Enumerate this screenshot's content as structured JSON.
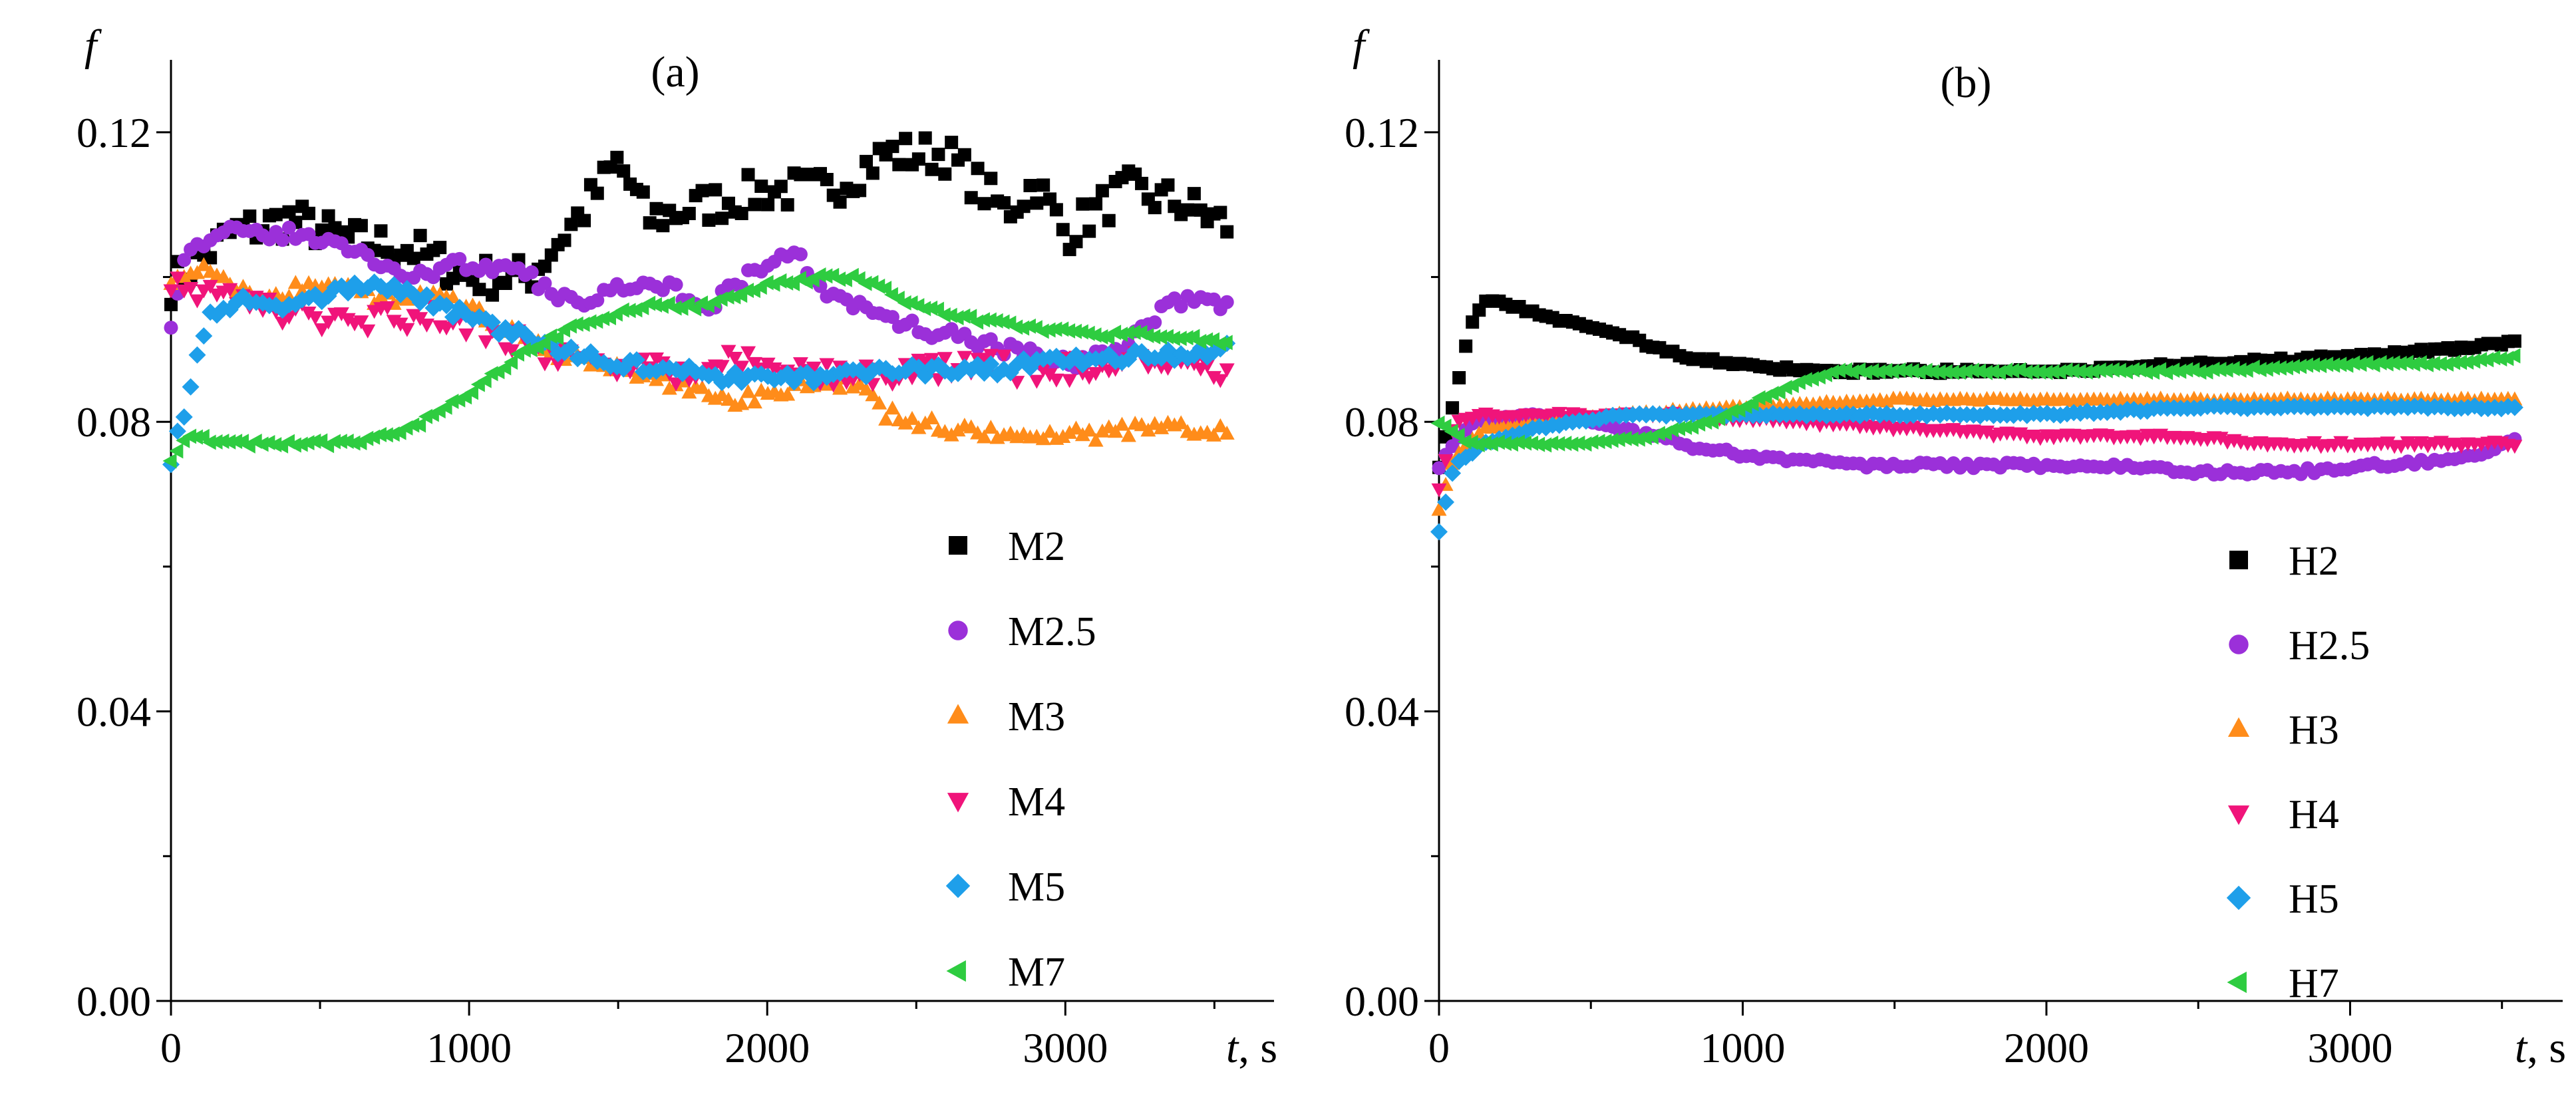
{
  "chart_data": [
    {
      "type": "scatter",
      "panel_label": "(a)",
      "ylabel": "f",
      "xlabel_var": "t",
      "xlabel_unit": ", s",
      "xlim": [
        0,
        3700
      ],
      "ylim": [
        0,
        0.13
      ],
      "x_ticks": [
        0,
        1000,
        2000,
        3000
      ],
      "x_tick_labels": [
        "0",
        "1000",
        "2000",
        "3000"
      ],
      "y_ticks": [
        0,
        0.04,
        0.08,
        0.12
      ],
      "y_tick_labels": [
        "0.00",
        "0.04",
        "0.08",
        "0.12"
      ],
      "legend_position": "bottom-right",
      "series": [
        {
          "name": "M2",
          "marker": "square",
          "color": "#000000",
          "trend": [
            [
              0,
              0.099
            ],
            [
              200,
              0.106
            ],
            [
              400,
              0.108
            ],
            [
              600,
              0.105
            ],
            [
              800,
              0.104
            ],
            [
              1000,
              0.1
            ],
            [
              1200,
              0.1
            ],
            [
              1400,
              0.11
            ],
            [
              1500,
              0.116
            ],
            [
              1600,
              0.108
            ],
            [
              1800,
              0.11
            ],
            [
              2000,
              0.112
            ],
            [
              2200,
              0.112
            ],
            [
              2400,
              0.117
            ],
            [
              2600,
              0.117
            ],
            [
              2800,
              0.109
            ],
            [
              2900,
              0.113
            ],
            [
              3000,
              0.106
            ],
            [
              3200,
              0.112
            ],
            [
              3400,
              0.11
            ],
            [
              3550,
              0.107
            ]
          ],
          "noise": 0.0028
        },
        {
          "name": "M2.5",
          "marker": "circle",
          "color": "#9B30D9",
          "trend": [
            [
              0,
              0.094
            ],
            [
              50,
              0.104
            ],
            [
              200,
              0.106
            ],
            [
              400,
              0.106
            ],
            [
              600,
              0.104
            ],
            [
              800,
              0.1
            ],
            [
              1000,
              0.102
            ],
            [
              1200,
              0.1
            ],
            [
              1300,
              0.097
            ],
            [
              1400,
              0.097
            ],
            [
              1600,
              0.1
            ],
            [
              1800,
              0.096
            ],
            [
              2000,
              0.102
            ],
            [
              2100,
              0.103
            ],
            [
              2200,
              0.098
            ],
            [
              2400,
              0.094
            ],
            [
              2600,
              0.092
            ],
            [
              2800,
              0.09
            ],
            [
              3000,
              0.088
            ],
            [
              3200,
              0.09
            ],
            [
              3350,
              0.097
            ],
            [
              3550,
              0.096
            ]
          ],
          "noise": 0.001
        },
        {
          "name": "M3",
          "marker": "triangle-up",
          "color": "#FF8C1A",
          "trend": [
            [
              0,
              0.1
            ],
            [
              100,
              0.101
            ],
            [
              300,
              0.097
            ],
            [
              500,
              0.099
            ],
            [
              700,
              0.097
            ],
            [
              900,
              0.098
            ],
            [
              1100,
              0.093
            ],
            [
              1300,
              0.089
            ],
            [
              1500,
              0.087
            ],
            [
              1700,
              0.085
            ],
            [
              1900,
              0.083
            ],
            [
              2100,
              0.085
            ],
            [
              2300,
              0.085
            ],
            [
              2400,
              0.081
            ],
            [
              2600,
              0.079
            ],
            [
              2800,
              0.078
            ],
            [
              3000,
              0.078
            ],
            [
              3300,
              0.079
            ],
            [
              3550,
              0.079
            ]
          ],
          "noise": 0.001
        },
        {
          "name": "M4",
          "marker": "triangle-down",
          "color": "#F0147A",
          "trend": [
            [
              0,
              0.1
            ],
            [
              100,
              0.098
            ],
            [
              300,
              0.096
            ],
            [
              500,
              0.094
            ],
            [
              700,
              0.094
            ],
            [
              900,
              0.095
            ],
            [
              1100,
              0.092
            ],
            [
              1300,
              0.089
            ],
            [
              1500,
              0.088
            ],
            [
              1700,
              0.087
            ],
            [
              1900,
              0.089
            ],
            [
              2100,
              0.087
            ],
            [
              2300,
              0.086
            ],
            [
              2500,
              0.087
            ],
            [
              2700,
              0.088
            ],
            [
              2900,
              0.087
            ],
            [
              3100,
              0.088
            ],
            [
              3300,
              0.088
            ],
            [
              3550,
              0.087
            ]
          ],
          "noise": 0.0018
        },
        {
          "name": "M5",
          "marker": "diamond",
          "color": "#1E9FEA",
          "trend": [
            [
              0,
              0.075
            ],
            [
              50,
              0.082
            ],
            [
              120,
              0.094
            ],
            [
              250,
              0.097
            ],
            [
              400,
              0.096
            ],
            [
              550,
              0.098
            ],
            [
              700,
              0.099
            ],
            [
              900,
              0.096
            ],
            [
              1100,
              0.093
            ],
            [
              1300,
              0.09
            ],
            [
              1500,
              0.088
            ],
            [
              1700,
              0.087
            ],
            [
              1900,
              0.086
            ],
            [
              2100,
              0.086
            ],
            [
              2300,
              0.087
            ],
            [
              2500,
              0.087
            ],
            [
              2700,
              0.087
            ],
            [
              2900,
              0.088
            ],
            [
              3100,
              0.089
            ],
            [
              3300,
              0.089
            ],
            [
              3550,
              0.09
            ]
          ],
          "noise": 0.0009
        },
        {
          "name": "M7",
          "marker": "triangle-left",
          "color": "#2ECC40",
          "trend": [
            [
              0,
              0.075
            ],
            [
              50,
              0.078
            ],
            [
              200,
              0.077
            ],
            [
              400,
              0.077
            ],
            [
              600,
              0.077
            ],
            [
              800,
              0.079
            ],
            [
              1000,
              0.084
            ],
            [
              1200,
              0.09
            ],
            [
              1400,
              0.094
            ],
            [
              1600,
              0.096
            ],
            [
              1800,
              0.096
            ],
            [
              2000,
              0.099
            ],
            [
              2200,
              0.1
            ],
            [
              2300,
              0.1
            ],
            [
              2500,
              0.096
            ],
            [
              2700,
              0.094
            ],
            [
              2900,
              0.093
            ],
            [
              3100,
              0.092
            ],
            [
              3300,
              0.092
            ],
            [
              3550,
              0.091
            ]
          ],
          "noise": 0.0004
        }
      ]
    },
    {
      "type": "scatter",
      "panel_label": "(b)",
      "ylabel": "f",
      "xlabel_var": "t",
      "xlabel_unit": ", s",
      "xlim": [
        0,
        3700
      ],
      "ylim": [
        0,
        0.13
      ],
      "x_ticks": [
        0,
        1000,
        2000,
        3000
      ],
      "x_tick_labels": [
        "0",
        "1000",
        "2000",
        "3000"
      ],
      "y_ticks": [
        0,
        0.04,
        0.08,
        0.12
      ],
      "y_tick_labels": [
        "0.00",
        "0.04",
        "0.08",
        "0.12"
      ],
      "legend_position": "bottom-right",
      "series": [
        {
          "name": "H2",
          "marker": "square",
          "color": "#000000",
          "trend": [
            [
              0,
              0.074
            ],
            [
              50,
              0.083
            ],
            [
              100,
              0.093
            ],
            [
              150,
              0.097
            ],
            [
              250,
              0.096
            ],
            [
              400,
              0.094
            ],
            [
              600,
              0.092
            ],
            [
              800,
              0.089
            ],
            [
              1000,
              0.088
            ],
            [
              1200,
              0.087
            ],
            [
              1500,
              0.087
            ],
            [
              2000,
              0.087
            ],
            [
              2500,
              0.088
            ],
            [
              3000,
              0.089
            ],
            [
              3300,
              0.09
            ],
            [
              3550,
              0.091
            ]
          ],
          "noise": 0.0003
        },
        {
          "name": "H2.5",
          "marker": "circle",
          "color": "#9B30D9",
          "trend": [
            [
              0,
              0.074
            ],
            [
              100,
              0.08
            ],
            [
              300,
              0.081
            ],
            [
              500,
              0.08
            ],
            [
              700,
              0.078
            ],
            [
              900,
              0.076
            ],
            [
              1100,
              0.075
            ],
            [
              1400,
              0.074
            ],
            [
              1800,
              0.074
            ],
            [
              2200,
              0.074
            ],
            [
              2500,
              0.073
            ],
            [
              2800,
              0.073
            ],
            [
              3100,
              0.074
            ],
            [
              3400,
              0.075
            ],
            [
              3550,
              0.078
            ]
          ],
          "noise": 0.0004
        },
        {
          "name": "H3",
          "marker": "triangle-up",
          "color": "#FF8C1A",
          "trend": [
            [
              0,
              0.068
            ],
            [
              50,
              0.075
            ],
            [
              150,
              0.079
            ],
            [
              300,
              0.08
            ],
            [
              600,
              0.081
            ],
            [
              1000,
              0.082
            ],
            [
              1500,
              0.083
            ],
            [
              2000,
              0.083
            ],
            [
              2500,
              0.083
            ],
            [
              3000,
              0.083
            ],
            [
              3550,
              0.083
            ]
          ],
          "noise": 0.0002
        },
        {
          "name": "H4",
          "marker": "triangle-down",
          "color": "#F0147A",
          "trend": [
            [
              0,
              0.071
            ],
            [
              50,
              0.08
            ],
            [
              150,
              0.081
            ],
            [
              400,
              0.081
            ],
            [
              800,
              0.081
            ],
            [
              1200,
              0.08
            ],
            [
              1600,
              0.079
            ],
            [
              2000,
              0.078
            ],
            [
              2400,
              0.078
            ],
            [
              2800,
              0.077
            ],
            [
              3200,
              0.077
            ],
            [
              3550,
              0.077
            ]
          ],
          "noise": 0.0003
        },
        {
          "name": "H5",
          "marker": "diamond",
          "color": "#1E9FEA",
          "trend": [
            [
              0,
              0.065
            ],
            [
              50,
              0.074
            ],
            [
              150,
              0.077
            ],
            [
              300,
              0.079
            ],
            [
              600,
              0.081
            ],
            [
              1000,
              0.081
            ],
            [
              1500,
              0.081
            ],
            [
              2000,
              0.081
            ],
            [
              2500,
              0.082
            ],
            [
              3000,
              0.082
            ],
            [
              3550,
              0.082
            ]
          ],
          "noise": 0.0002
        },
        {
          "name": "H7",
          "marker": "triangle-left",
          "color": "#2ECC40",
          "trend": [
            [
              0,
              0.08
            ],
            [
              100,
              0.077
            ],
            [
              300,
              0.077
            ],
            [
              500,
              0.077
            ],
            [
              700,
              0.078
            ],
            [
              900,
              0.08
            ],
            [
              1100,
              0.084
            ],
            [
              1300,
              0.087
            ],
            [
              1500,
              0.087
            ],
            [
              2000,
              0.087
            ],
            [
              2500,
              0.087
            ],
            [
              3000,
              0.088
            ],
            [
              3300,
              0.088
            ],
            [
              3550,
              0.089
            ]
          ],
          "noise": 0.0002
        }
      ]
    }
  ]
}
